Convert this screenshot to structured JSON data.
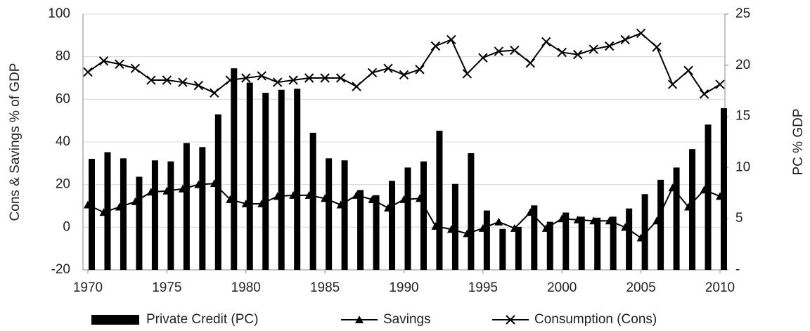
{
  "chart_data": {
    "type": "bar-line",
    "y_label": "Cons & Savings % of GDP",
    "y2_label": "PC % GDP",
    "x": [
      1970,
      1971,
      1972,
      1973,
      1974,
      1975,
      1976,
      1977,
      1978,
      1979,
      1980,
      1981,
      1982,
      1983,
      1984,
      1985,
      1986,
      1987,
      1988,
      1989,
      1990,
      1991,
      1992,
      1993,
      1994,
      1995,
      1996,
      1997,
      1998,
      1999,
      2000,
      2001,
      2002,
      2003,
      2004,
      2005,
      2006,
      2007,
      2008,
      2009,
      2010
    ],
    "series": [
      {
        "name": "Private Credit (PC)",
        "type": "bar",
        "axis": "y2",
        "color": "#000000",
        "values": [
          10.85,
          11.5,
          10.9,
          9.1,
          10.7,
          10.6,
          12.4,
          12.0,
          15.2,
          19.7,
          18.3,
          17.3,
          17.6,
          17.7,
          13.4,
          10.9,
          10.7,
          7.8,
          7.3,
          8.7,
          10.0,
          10.6,
          13.6,
          8.4,
          11.4,
          5.8,
          4.0,
          4.2,
          6.3,
          4.7,
          5.6,
          5.2,
          5.1,
          5.2,
          6.0,
          7.4,
          8.8,
          10.0,
          11.8,
          14.2,
          15.8
        ]
      },
      {
        "name": "Savings",
        "type": "line",
        "marker": "triangle",
        "color": "#000000",
        "values": [
          10.5,
          7,
          9.5,
          12,
          16.5,
          17,
          18,
          20,
          20.5,
          13,
          11,
          11,
          14.5,
          15,
          15,
          13.5,
          10.5,
          15,
          13,
          9,
          13,
          13.5,
          0.5,
          -1,
          -3,
          -0.5,
          2.5,
          -0.5,
          7,
          -0.5,
          4,
          3.5,
          3,
          3,
          0,
          -5,
          3,
          18.5,
          9.5,
          17.5,
          14.5
        ]
      },
      {
        "name": "Consumption (Cons)",
        "type": "line",
        "marker": "x",
        "color": "#000000",
        "values": [
          72.8,
          78,
          76.5,
          74.5,
          69,
          69,
          68,
          66.5,
          63,
          69,
          70,
          71,
          68,
          69,
          70,
          70,
          70,
          66,
          72.5,
          74.5,
          71.5,
          74,
          85,
          88,
          72,
          79.5,
          82.5,
          83,
          77,
          87,
          82,
          81,
          83.5,
          85,
          88,
          91,
          84.5,
          67,
          73.5,
          62.5,
          67
        ]
      }
    ],
    "xlim": [
      1970,
      2010
    ],
    "xticks": [
      1970,
      1975,
      1980,
      1985,
      1990,
      1995,
      2000,
      2005,
      2010
    ],
    "ylim": [
      -20,
      100
    ],
    "yticks": [
      -20,
      0,
      20,
      40,
      60,
      80,
      100
    ],
    "y2lim": [
      0,
      25
    ],
    "y2ticks": [
      {
        "value": 0,
        "label": "-"
      },
      5,
      10,
      15,
      20,
      25
    ],
    "grid": true,
    "legend": "bottom"
  }
}
